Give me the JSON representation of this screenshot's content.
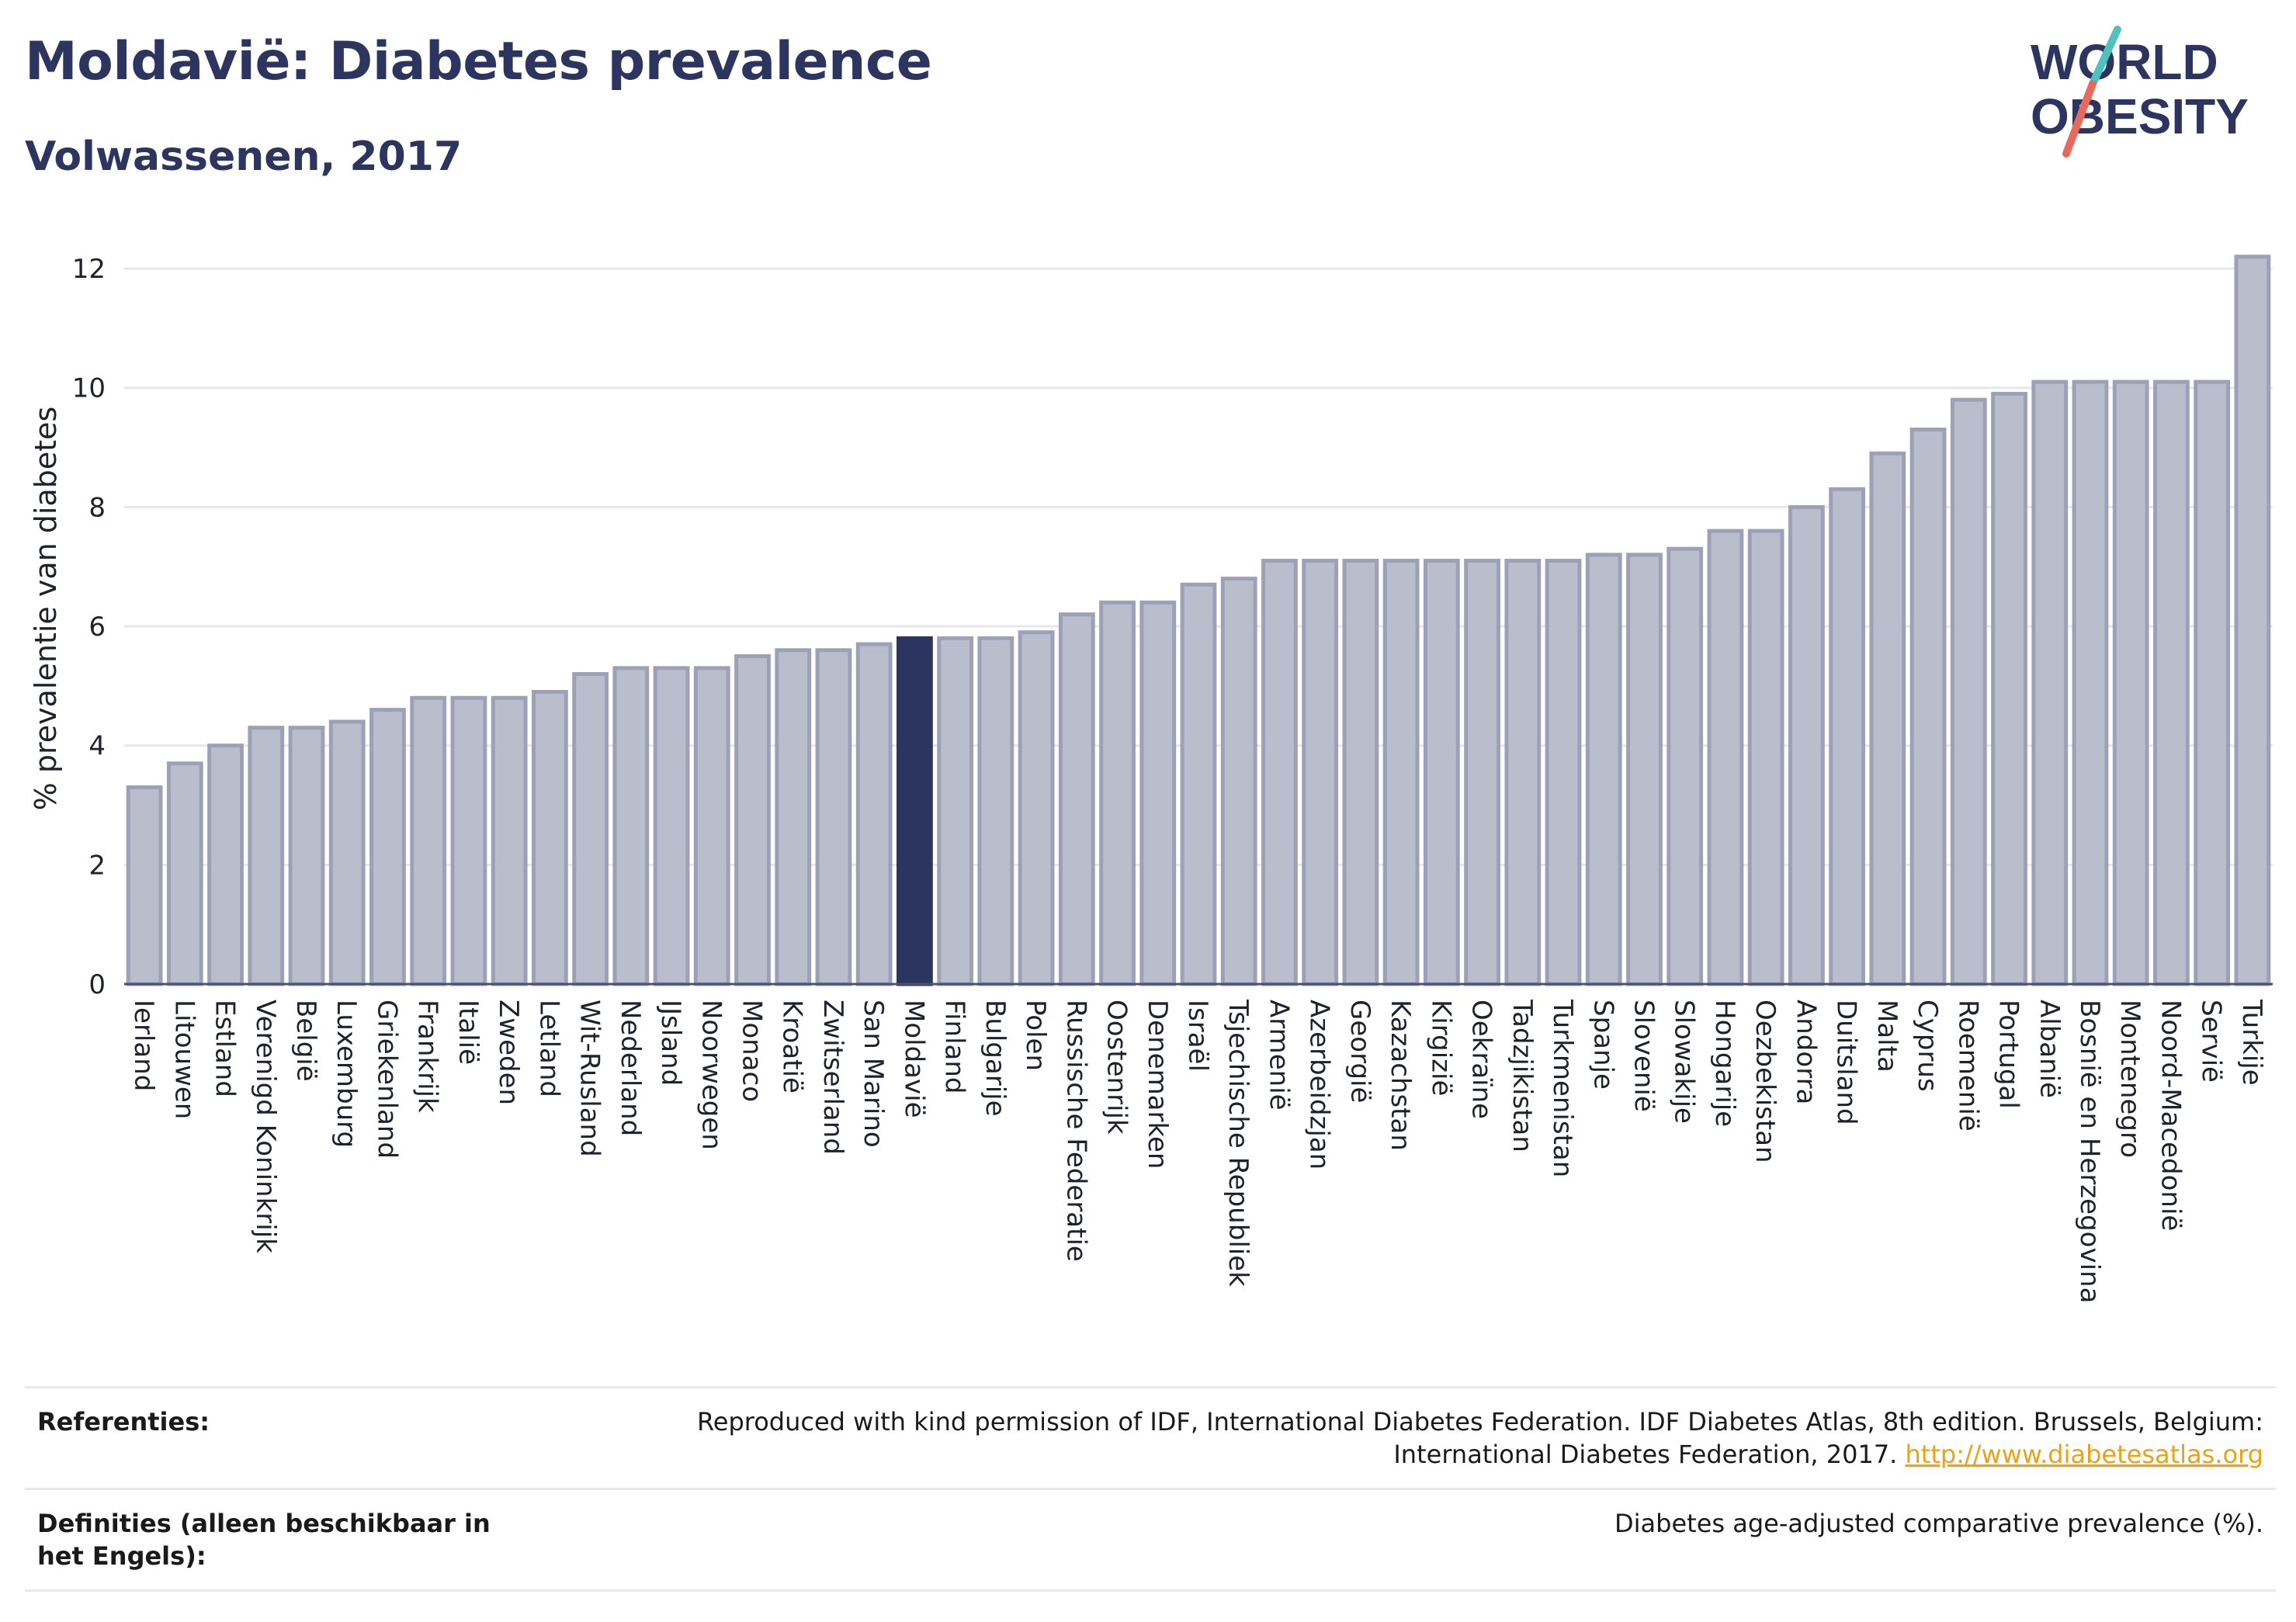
{
  "header": {
    "title": "Moldavië: Diabetes prevalence",
    "subtitle": "Volwassenen, 2017"
  },
  "logo": {
    "line1": "WORLD",
    "line2": "OBESITY",
    "slash_colors": [
      "#4fc2c0",
      "#e86a5b"
    ],
    "text_color": "#2c3560"
  },
  "colors": {
    "bar_default": "#b9bdcc",
    "bar_border": "#9ca1b8",
    "bar_highlight": "#2c3560",
    "grid": "#e6e7ec",
    "baseline": "#4a5070"
  },
  "chart_data": {
    "type": "bar",
    "ylabel": "% prevalentie van diabetes",
    "ylim": [
      0,
      12.6
    ],
    "yticks": [
      0,
      2,
      4,
      6,
      8,
      10,
      12
    ],
    "grid": true,
    "highlight": "Moldavië",
    "categories": [
      "Ierland",
      "Litouwen",
      "Estland",
      "Verenigd Koninkrijk",
      "België",
      "Luxemburg",
      "Griekenland",
      "Frankrijk",
      "Italië",
      "Zweden",
      "Letland",
      "Wit-Rusland",
      "Nederland",
      "IJsland",
      "Noorwegen",
      "Monaco",
      "Kroatië",
      "Zwitserland",
      "San Marino",
      "Moldavië",
      "Finland",
      "Bulgarije",
      "Polen",
      "Russische Federatie",
      "Oostenrijk",
      "Denemarken",
      "Israël",
      "Tsjechische Republiek",
      "Armenië",
      "Azerbeidzjan",
      "Georgië",
      "Kazachstan",
      "Kirgizië",
      "Oekraïne",
      "Tadzjikistan",
      "Turkmenistan",
      "Spanje",
      "Slovenië",
      "Slowakije",
      "Hongarije",
      "Oezbekistan",
      "Andorra",
      "Duitsland",
      "Malta",
      "Cyprus",
      "Roemenië",
      "Portugal",
      "Albanië",
      "Bosnië en Herzegovina",
      "Montenegro",
      "Noord-Macedonië",
      "Servië",
      "Turkije"
    ],
    "values": [
      3.3,
      3.7,
      4.0,
      4.3,
      4.3,
      4.4,
      4.6,
      4.8,
      4.8,
      4.8,
      4.9,
      5.2,
      5.3,
      5.3,
      5.3,
      5.5,
      5.6,
      5.6,
      5.7,
      5.8,
      5.8,
      5.8,
      5.9,
      6.2,
      6.4,
      6.4,
      6.7,
      6.8,
      7.1,
      7.1,
      7.1,
      7.1,
      7.1,
      7.1,
      7.1,
      7.1,
      7.2,
      7.2,
      7.3,
      7.6,
      7.6,
      8.0,
      8.3,
      8.9,
      9.3,
      9.8,
      9.9,
      10.1,
      10.1,
      10.1,
      10.1,
      10.1,
      12.2
    ]
  },
  "footer": {
    "references_label": "Referenties:",
    "references_text": "Reproduced with kind permission of IDF, International Diabetes Federation. IDF Diabetes Atlas, 8th edition. Brussels, Belgium: International Diabetes Federation, 2017.",
    "references_link": "http://www.diabetesatlas.org",
    "definitions_label": "Definities (alleen beschikbaar in het Engels):",
    "definitions_text": "Diabetes age-adjusted comparative prevalence (%)."
  }
}
